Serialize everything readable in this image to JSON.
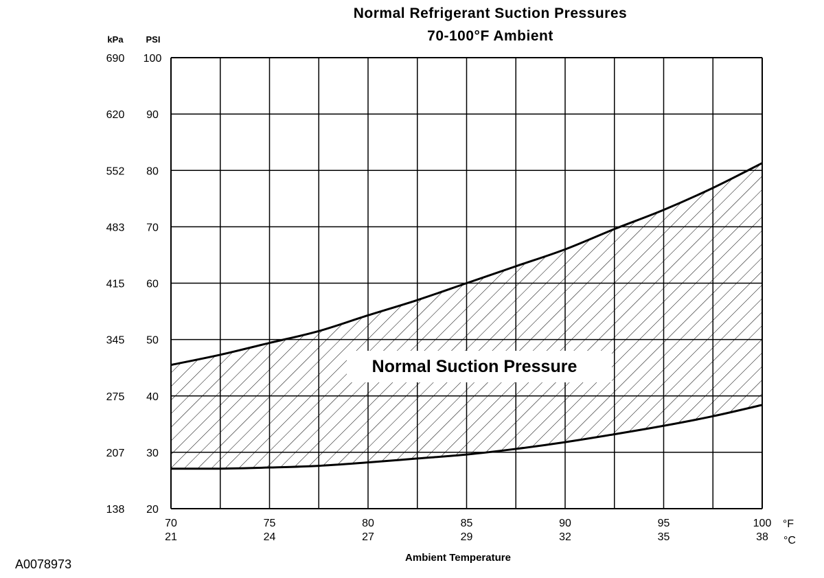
{
  "chart_data": {
    "type": "area",
    "title": "Normal Refrigerant Suction Pressures",
    "subtitle": "70-100°F Ambient",
    "xlabel": "Ambient Temperature",
    "x_unit_primary": "°F",
    "x_unit_secondary": "°C",
    "y_unit_primary": "PSI",
    "y_unit_secondary": "kPa",
    "xlim": [
      70,
      100
    ],
    "ylim": [
      20,
      100
    ],
    "grid": true,
    "x_ticks_f": [
      70,
      75,
      80,
      85,
      90,
      95,
      100
    ],
    "x_ticks_c": [
      "21",
      "24",
      "27",
      "29",
      "32",
      "35",
      "38"
    ],
    "y_ticks_psi": [
      100,
      90,
      80,
      70,
      60,
      50,
      40,
      30,
      20
    ],
    "y_ticks_kpa": [
      "690",
      "620",
      "552",
      "483",
      "415",
      "345",
      "275",
      "207",
      "138"
    ],
    "x_minor_grid": [
      72.5,
      77.5,
      82.5,
      87.5,
      92.5,
      97.5
    ],
    "region_label": "Normal Suction Pressure",
    "upper_bound": [
      {
        "x": 70,
        "y": 45.5
      },
      {
        "x": 72.5,
        "y": 47.3
      },
      {
        "x": 75,
        "y": 49.4
      },
      {
        "x": 77.5,
        "y": 51.5
      },
      {
        "x": 80,
        "y": 54.3
      },
      {
        "x": 82.5,
        "y": 57.0
      },
      {
        "x": 85,
        "y": 60.0
      },
      {
        "x": 87.5,
        "y": 63.0
      },
      {
        "x": 90,
        "y": 66.0
      },
      {
        "x": 92.5,
        "y": 69.6
      },
      {
        "x": 95,
        "y": 73.0
      },
      {
        "x": 97.5,
        "y": 76.9
      },
      {
        "x": 100,
        "y": 81.3
      }
    ],
    "lower_bound": [
      {
        "x": 70,
        "y": 27.1
      },
      {
        "x": 72.5,
        "y": 27.1
      },
      {
        "x": 75,
        "y": 27.3
      },
      {
        "x": 77.5,
        "y": 27.6
      },
      {
        "x": 80,
        "y": 28.2
      },
      {
        "x": 82.5,
        "y": 28.9
      },
      {
        "x": 85,
        "y": 29.6
      },
      {
        "x": 87.5,
        "y": 30.6
      },
      {
        "x": 90,
        "y": 31.8
      },
      {
        "x": 92.5,
        "y": 33.2
      },
      {
        "x": 95,
        "y": 34.7
      },
      {
        "x": 97.5,
        "y": 36.4
      },
      {
        "x": 100,
        "y": 38.4
      }
    ]
  },
  "figure_ref": "A0078973"
}
